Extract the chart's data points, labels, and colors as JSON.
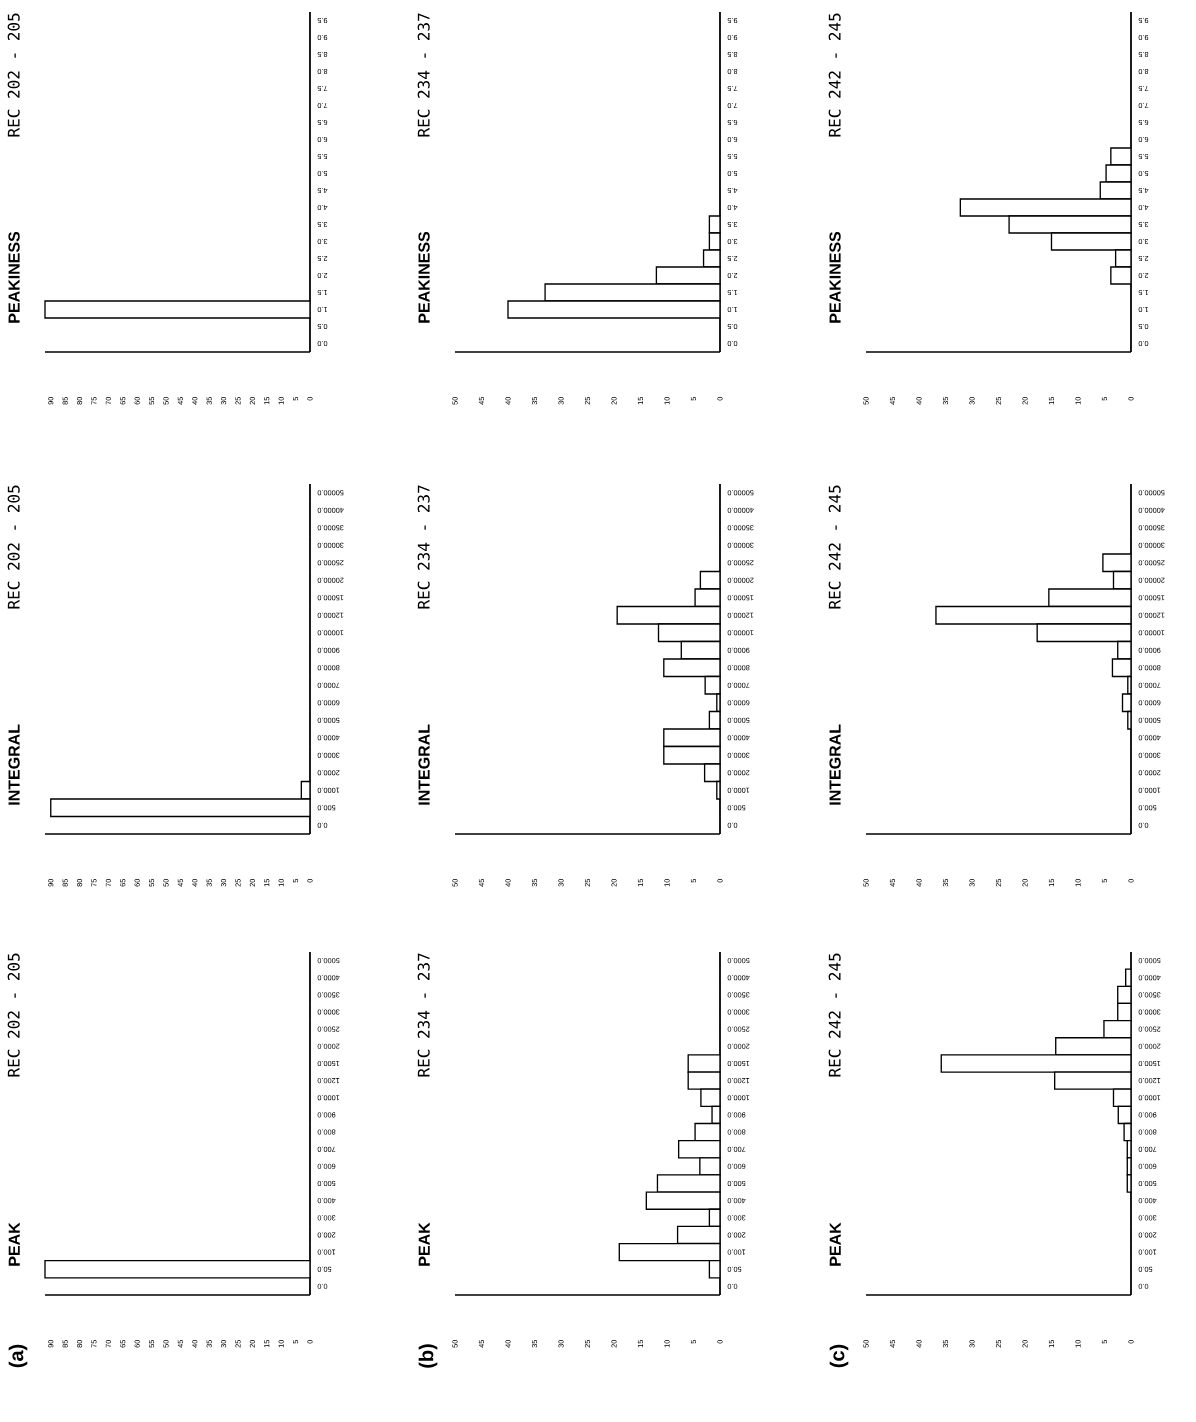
{
  "chart_data": [
    {
      "type": "bar",
      "orientation": "horizontal",
      "title": "PEAKINESS",
      "subtitle": "REC 202 - 205",
      "color": "#000000",
      "categories": [
        "9.5",
        "9.0",
        "8.5",
        "8.0",
        "7.5",
        "7.0",
        "6.5",
        "6.0",
        "5.5",
        "5.0",
        "4.5",
        "4.0",
        "3.5",
        "3.0",
        "2.5",
        "2.0",
        "1.5",
        "1.0",
        "0.5",
        "0.0"
      ],
      "values": [
        0,
        0,
        0,
        0,
        0,
        0,
        0,
        0,
        0,
        0,
        0,
        0,
        0,
        0,
        0,
        0,
        0,
        92,
        0,
        0
      ],
      "xlim": [
        92,
        0
      ],
      "xticks": [
        0,
        5,
        10,
        15,
        20,
        25,
        30,
        35,
        40,
        45,
        50,
        55,
        60,
        65,
        70,
        75,
        80,
        85,
        90
      ]
    },
    {
      "type": "bar",
      "orientation": "horizontal",
      "title": "PEAKINESS",
      "subtitle": "REC 234 - 237",
      "color": "#000000",
      "categories": [
        "9.5",
        "9.0",
        "8.5",
        "8.0",
        "7.5",
        "7.0",
        "6.5",
        "6.0",
        "5.5",
        "5.0",
        "4.5",
        "4.0",
        "3.5",
        "3.0",
        "2.5",
        "2.0",
        "1.5",
        "1.0",
        "0.5",
        "0.0"
      ],
      "values": [
        0,
        0,
        0,
        0,
        0,
        0,
        0,
        0,
        0,
        0,
        0,
        0,
        2,
        2,
        3.1,
        12,
        33,
        40,
        0,
        0
      ],
      "xlim": [
        50,
        0
      ],
      "xticks": [
        0,
        5,
        10,
        15,
        20,
        25,
        30,
        35,
        40,
        45,
        50
      ]
    },
    {
      "type": "bar",
      "orientation": "horizontal",
      "title": "PEAKINESS",
      "subtitle": "REC 242 - 245",
      "color": "#000000",
      "categories": [
        "9.5",
        "9.0",
        "8.5",
        "8.0",
        "7.5",
        "7.0",
        "6.5",
        "6.0",
        "5.5",
        "5.0",
        "4.5",
        "4.0",
        "3.5",
        "3.0",
        "2.5",
        "2.0",
        "1.5",
        "1.0",
        "0.5",
        "0.0"
      ],
      "values": [
        0,
        0,
        0,
        0,
        0,
        0,
        0,
        0,
        3.8,
        4.7,
        5.8,
        32.2,
        23,
        15,
        2.9,
        3.8,
        0,
        0,
        0,
        0
      ],
      "xlim": [
        50,
        0
      ],
      "xticks": [
        0,
        5,
        10,
        15,
        20,
        25,
        30,
        35,
        40,
        45,
        50
      ]
    },
    {
      "type": "bar",
      "orientation": "horizontal",
      "title": "INTEGRAL",
      "subtitle": "REC 202 - 205",
      "color": "#000000",
      "categories": [
        "50000.0",
        "40000.0",
        "35000.0",
        "30000.0",
        "25000.0",
        "20000.0",
        "15000.0",
        "12000.0",
        "10000.0",
        "9000.0",
        "8000.0",
        "7000.0",
        "6000.0",
        "5000.0",
        "4000.0",
        "3000.0",
        "2000.0",
        "1000.0",
        "500.0",
        "0.0"
      ],
      "values": [
        0,
        0,
        0,
        0,
        0,
        0,
        0,
        0,
        0,
        0,
        0,
        0,
        0,
        0,
        0,
        0,
        0,
        3,
        90,
        0
      ],
      "xlim": [
        92,
        0
      ],
      "xticks": [
        0,
        5,
        10,
        15,
        20,
        25,
        30,
        35,
        40,
        45,
        50,
        55,
        60,
        65,
        70,
        75,
        80,
        85,
        90
      ]
    },
    {
      "type": "bar",
      "orientation": "horizontal",
      "title": "INTEGRAL",
      "subtitle": "REC 234 - 237",
      "color": "#000000",
      "categories": [
        "50000.0",
        "40000.0",
        "35000.0",
        "30000.0",
        "25000.0",
        "20000.0",
        "15000.0",
        "12000.0",
        "10000.0",
        "9000.0",
        "8000.0",
        "7000.0",
        "6000.0",
        "5000.0",
        "4000.0",
        "3000.0",
        "2000.0",
        "1000.0",
        "500.0",
        "0.0"
      ],
      "values": [
        0,
        0,
        0,
        0,
        0,
        3.7,
        4.7,
        19.4,
        11.6,
        7.3,
        10.6,
        2.8,
        0.6,
        2,
        10.6,
        10.6,
        2.9,
        0.6,
        0,
        0
      ],
      "xlim": [
        50,
        0
      ],
      "xticks": [
        0,
        5,
        10,
        15,
        20,
        25,
        30,
        35,
        40,
        45,
        50
      ]
    },
    {
      "type": "bar",
      "orientation": "horizontal",
      "title": "INTEGRAL",
      "subtitle": "REC 242 - 245",
      "color": "#000000",
      "categories": [
        "50000.0",
        "40000.0",
        "35000.0",
        "30000.0",
        "25000.0",
        "20000.0",
        "15000.0",
        "12000.0",
        "10000.0",
        "9000.0",
        "8000.0",
        "7000.0",
        "6000.0",
        "5000.0",
        "4000.0",
        "3000.0",
        "2000.0",
        "1000.0",
        "500.0",
        "0.0"
      ],
      "values": [
        0,
        0,
        0,
        0,
        5.3,
        3.3,
        15.5,
        36.8,
        17.7,
        2.5,
        3.5,
        0.6,
        1.6,
        0.6,
        0,
        0,
        0,
        0,
        0,
        0
      ],
      "xlim": [
        50,
        0
      ],
      "xticks": [
        0,
        5,
        10,
        15,
        20,
        25,
        30,
        35,
        40,
        45,
        50
      ]
    },
    {
      "type": "bar",
      "orientation": "horizontal",
      "title": "PEAK",
      "subtitle": "REC 202 - 205",
      "annotations": [
        "(a)"
      ],
      "color": "#000000",
      "categories": [
        "5000.0",
        "4000.0",
        "3500.0",
        "3000.0",
        "2500.0",
        "2000.0",
        "1500.0",
        "1200.0",
        "1000.0",
        "900.0",
        "800.0",
        "700.0",
        "600.0",
        "500.0",
        "400.0",
        "300.0",
        "200.0",
        "100.0",
        "50.0",
        "0.0"
      ],
      "values": [
        0,
        0,
        0,
        0,
        0,
        0,
        0,
        0,
        0,
        0,
        0,
        0,
        0,
        0,
        0,
        0,
        0,
        0,
        92,
        0
      ],
      "xlim": [
        92,
        0
      ],
      "xticks": [
        0,
        5,
        10,
        15,
        20,
        25,
        30,
        35,
        40,
        45,
        50,
        55,
        60,
        65,
        70,
        75,
        80,
        85,
        90
      ]
    },
    {
      "type": "bar",
      "orientation": "horizontal",
      "title": "PEAK",
      "subtitle": "REC 234 - 237",
      "annotations": [
        "(b)"
      ],
      "color": "#000000",
      "categories": [
        "5000.0",
        "4000.0",
        "3500.0",
        "3000.0",
        "2500.0",
        "2000.0",
        "1500.0",
        "1200.0",
        "1000.0",
        "900.0",
        "800.0",
        "700.0",
        "600.0",
        "500.0",
        "400.0",
        "300.0",
        "200.0",
        "100.0",
        "50.0",
        "0.0"
      ],
      "values": [
        0,
        0,
        0,
        0,
        0,
        0,
        6,
        6,
        3.6,
        1.5,
        4.7,
        7.8,
        3.8,
        11.8,
        13.9,
        2,
        8,
        19,
        2,
        0
      ],
      "xlim": [
        50,
        0
      ],
      "xticks": [
        0,
        5,
        10,
        15,
        20,
        25,
        30,
        35,
        40,
        45,
        50
      ]
    },
    {
      "type": "bar",
      "orientation": "horizontal",
      "title": "PEAK",
      "subtitle": "REC 242 - 245",
      "annotations": [
        "(c)"
      ],
      "color": "#000000",
      "categories": [
        "5000.0",
        "4000.0",
        "3500.0",
        "3000.0",
        "2500.0",
        "2000.0",
        "1500.0",
        "1200.0",
        "1000.0",
        "900.0",
        "800.0",
        "700.0",
        "600.0",
        "500.0",
        "400.0",
        "300.0",
        "200.0",
        "100.0",
        "50.0",
        "0.0"
      ],
      "values": [
        0,
        1,
        2.5,
        2.5,
        5.1,
        14.2,
        35.8,
        14.4,
        3.3,
        2.4,
        1.3,
        0.7,
        0.7,
        0.7,
        0,
        0,
        0,
        0,
        0,
        0
      ],
      "xlim": [
        50,
        0
      ],
      "xticks": [
        0,
        5,
        10,
        15,
        20,
        25,
        30,
        35,
        40,
        45,
        50
      ]
    }
  ]
}
